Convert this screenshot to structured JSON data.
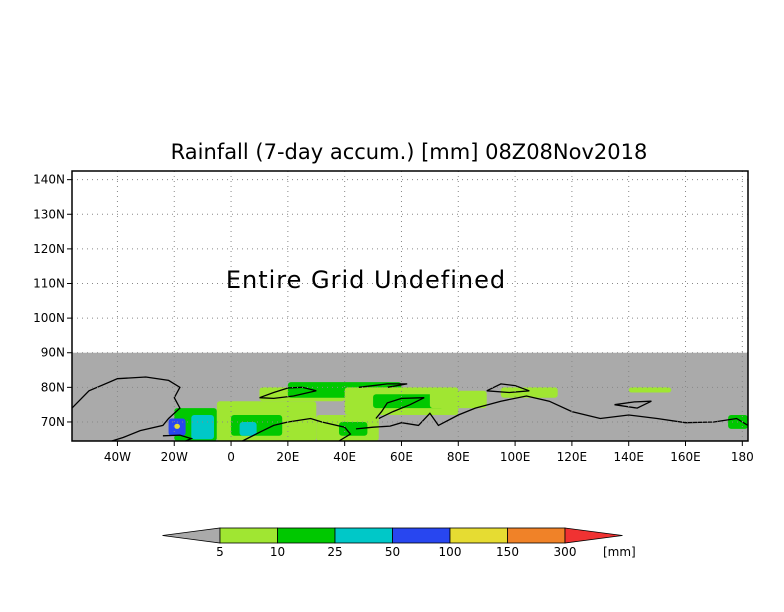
{
  "title": "Rainfall (7-day accum.) [mm] 08Z08Nov2018",
  "message": "Entire Grid Undefined",
  "map": {
    "lon_range": [
      -56,
      182
    ],
    "lat_range": [
      64.5,
      142.5
    ],
    "lat_ticks": [
      {
        "value": 140,
        "label": "140N"
      },
      {
        "value": 130,
        "label": "130N"
      },
      {
        "value": 120,
        "label": "120N"
      },
      {
        "value": 110,
        "label": "110N"
      },
      {
        "value": 100,
        "label": "100N"
      },
      {
        "value": 90,
        "label": "90N"
      },
      {
        "value": 80,
        "label": "80N"
      },
      {
        "value": 70,
        "label": "70N"
      }
    ],
    "lon_ticks": [
      {
        "value": -40,
        "label": "40W"
      },
      {
        "value": -20,
        "label": "20W"
      },
      {
        "value": 0,
        "label": "0"
      },
      {
        "value": 20,
        "label": "20E"
      },
      {
        "value": 40,
        "label": "40E"
      },
      {
        "value": 60,
        "label": "60E"
      },
      {
        "value": 80,
        "label": "80E"
      },
      {
        "value": 100,
        "label": "100E"
      },
      {
        "value": 120,
        "label": "120E"
      },
      {
        "value": 140,
        "label": "140E"
      },
      {
        "value": 160,
        "label": "160E"
      },
      {
        "value": 180,
        "label": "180"
      }
    ],
    "colors": {
      "undefined_area": "#aaaaaa",
      "grid": "#888888",
      "coast": "#000000",
      "ocean": "#a0a0a0"
    },
    "rain_patches": [
      {
        "lon": [
          -20,
          -5
        ],
        "lat": [
          64.5,
          74
        ],
        "level": 2
      },
      {
        "lon": [
          -14,
          -6
        ],
        "lat": [
          65,
          72
        ],
        "level": 3
      },
      {
        "lon": [
          -22,
          -16
        ],
        "lat": [
          66,
          71
        ],
        "level": 4
      },
      {
        "lon": [
          -20,
          -18
        ],
        "lat": [
          68,
          69.5
        ],
        "level": 5
      },
      {
        "lon": [
          -5,
          30
        ],
        "lat": [
          64.5,
          76
        ],
        "level": 1
      },
      {
        "lon": [
          0,
          18
        ],
        "lat": [
          66,
          72
        ],
        "level": 2
      },
      {
        "lon": [
          3,
          9
        ],
        "lat": [
          66,
          70
        ],
        "level": 3
      },
      {
        "lon": [
          10,
          40
        ],
        "lat": [
          76,
          80
        ],
        "level": 1
      },
      {
        "lon": [
          20,
          60
        ],
        "lat": [
          77,
          81.5
        ],
        "level": 2
      },
      {
        "lon": [
          40,
          80
        ],
        "lat": [
          72,
          80
        ],
        "level": 1
      },
      {
        "lon": [
          50,
          75
        ],
        "lat": [
          74,
          78
        ],
        "level": 2
      },
      {
        "lon": [
          30,
          52
        ],
        "lat": [
          64.5,
          72
        ],
        "level": 1
      },
      {
        "lon": [
          38,
          48
        ],
        "lat": [
          66,
          70
        ],
        "level": 2
      },
      {
        "lon": [
          70,
          90
        ],
        "lat": [
          74,
          79
        ],
        "level": 1
      },
      {
        "lon": [
          95,
          115
        ],
        "lat": [
          77,
          80
        ],
        "level": 1
      },
      {
        "lon": [
          140,
          155
        ],
        "lat": [
          78.5,
          80
        ],
        "level": 1
      },
      {
        "lon": [
          175,
          182
        ],
        "lat": [
          68,
          72
        ],
        "level": 2
      }
    ],
    "coastlines": [
      [
        [
          -56,
          74
        ],
        [
          -50,
          79
        ],
        [
          -40,
          82.5
        ],
        [
          -30,
          83
        ],
        [
          -22,
          82
        ],
        [
          -18,
          80
        ],
        [
          -20,
          77
        ],
        [
          -18,
          74
        ],
        [
          -22,
          71
        ],
        [
          -24,
          69
        ],
        [
          -32,
          67.5
        ],
        [
          -38,
          65.5
        ],
        [
          -42,
          64.5
        ]
      ],
      [
        [
          -24,
          66
        ],
        [
          -18,
          66.2
        ],
        [
          -14,
          65.2
        ],
        [
          -16,
          64.5
        ]
      ],
      [
        [
          4,
          64.5
        ],
        [
          10,
          67
        ],
        [
          15,
          69
        ],
        [
          20,
          70
        ],
        [
          28,
          71
        ],
        [
          32,
          70
        ],
        [
          40,
          68.5
        ],
        [
          42,
          66.5
        ],
        [
          38,
          64.5
        ]
      ],
      [
        [
          44,
          68
        ],
        [
          50,
          68.5
        ],
        [
          56,
          68.8
        ],
        [
          60,
          69.8
        ],
        [
          66,
          69
        ],
        [
          70,
          72.5
        ],
        [
          73,
          69
        ],
        [
          80,
          72
        ],
        [
          86,
          74
        ],
        [
          95,
          76
        ],
        [
          104,
          77.5
        ],
        [
          112,
          76
        ],
        [
          120,
          73
        ],
        [
          130,
          71
        ],
        [
          140,
          72
        ],
        [
          150,
          71
        ],
        [
          160,
          69.8
        ],
        [
          170,
          70
        ],
        [
          178,
          71
        ],
        [
          182,
          69
        ]
      ],
      [
        [
          51,
          71
        ],
        [
          53,
          73
        ],
        [
          55,
          75.5
        ],
        [
          60,
          76.8
        ],
        [
          68,
          77
        ],
        [
          63,
          75
        ],
        [
          57,
          73
        ],
        [
          52,
          71
        ]
      ],
      [
        [
          10,
          77
        ],
        [
          15,
          78.5
        ],
        [
          20,
          79.8
        ],
        [
          25,
          80
        ],
        [
          30,
          79
        ],
        [
          22,
          77.5
        ],
        [
          15,
          76.8
        ],
        [
          10,
          77
        ]
      ],
      [
        [
          45,
          80
        ],
        [
          55,
          81
        ],
        [
          62,
          81
        ],
        [
          55,
          80
        ]
      ],
      [
        [
          90,
          79
        ],
        [
          95,
          81
        ],
        [
          100,
          80.5
        ],
        [
          105,
          79
        ],
        [
          98,
          78.5
        ],
        [
          90,
          79
        ]
      ],
      [
        [
          135,
          75
        ],
        [
          142,
          75.8
        ],
        [
          148,
          76
        ],
        [
          143,
          74
        ],
        [
          135,
          75
        ]
      ]
    ]
  },
  "colorbar": {
    "colors": [
      "#aaaaaa",
      "#a0e632",
      "#00c800",
      "#00c8c8",
      "#2846f0",
      "#e6dc32",
      "#f08228",
      "#f03232"
    ],
    "labels": [
      "5",
      "10",
      "25",
      "50",
      "100",
      "150",
      "300"
    ],
    "unit": "[mm]"
  }
}
